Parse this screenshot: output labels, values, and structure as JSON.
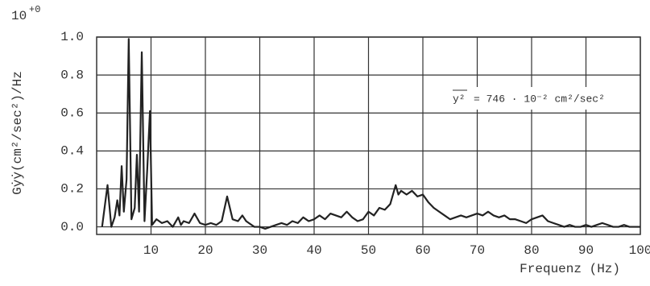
{
  "chart_data": {
    "type": "line",
    "y_scale": "10",
    "y_scale_exponent": "+0",
    "y_label": "Gẏẏ(cm²/sec²)/Hz",
    "x_label": "Frequenz (Hz)",
    "annotation_symbol": "y²",
    "annotation": "= 746 · 10⁻² cm²/sec²",
    "color": "#222222",
    "grid": true,
    "xlim": [
      0,
      100
    ],
    "xticks": [
      10,
      20,
      30,
      40,
      50,
      60,
      70,
      80,
      90,
      100
    ],
    "ylim": [
      -0.04,
      1.0
    ],
    "yticks": [
      {
        "value": 0,
        "label": "0.0"
      },
      {
        "value": 0.2,
        "label": "0.2"
      },
      {
        "value": 0.4,
        "label": "0.4"
      },
      {
        "value": 0.6,
        "label": "0.6"
      },
      {
        "value": 0.8,
        "label": "0.8"
      },
      {
        "value": 1.0,
        "label": "1.0"
      }
    ],
    "x": [
      1,
      2,
      2.7,
      3.3,
      3.8,
      4.2,
      4.6,
      5.0,
      5.5,
      5.9,
      6.4,
      7.0,
      7.4,
      7.8,
      8.3,
      8.8,
      9.3,
      9.8,
      10.2,
      11,
      12,
      13,
      14,
      15,
      15.5,
      16,
      17,
      18,
      19,
      20,
      21,
      22,
      23,
      24,
      24.5,
      25,
      26,
      26.8,
      27.5,
      28,
      29,
      30,
      31,
      32,
      33,
      34,
      35,
      36,
      37,
      38,
      39,
      40,
      41,
      42,
      43,
      44,
      45,
      46,
      47,
      48,
      49,
      50,
      51,
      52,
      53,
      54,
      55,
      55.5,
      56,
      57,
      58,
      59,
      60,
      61,
      62,
      63,
      64,
      65,
      66,
      67,
      68,
      69,
      70,
      71,
      72,
      73,
      74,
      75,
      76,
      77,
      78,
      79,
      80,
      81,
      82,
      83,
      84,
      85,
      86,
      87,
      88,
      89,
      90,
      91,
      92,
      93,
      94,
      95,
      96,
      97,
      98,
      99,
      100
    ],
    "values": [
      0.0,
      0.22,
      0.0,
      0.05,
      0.14,
      0.06,
      0.32,
      0.08,
      0.25,
      0.99,
      0.04,
      0.1,
      0.38,
      0.08,
      0.92,
      0.03,
      0.3,
      0.61,
      0.01,
      0.04,
      0.02,
      0.03,
      0.0,
      0.05,
      0.01,
      0.03,
      0.02,
      0.07,
      0.02,
      0.01,
      0.02,
      0.01,
      0.03,
      0.16,
      0.1,
      0.04,
      0.03,
      0.06,
      0.03,
      0.02,
      0.0,
      0.0,
      -0.01,
      0.0,
      0.01,
      0.02,
      0.01,
      0.03,
      0.02,
      0.05,
      0.03,
      0.04,
      0.06,
      0.04,
      0.07,
      0.06,
      0.05,
      0.08,
      0.05,
      0.03,
      0.04,
      0.08,
      0.06,
      0.1,
      0.09,
      0.12,
      0.22,
      0.17,
      0.19,
      0.17,
      0.19,
      0.16,
      0.17,
      0.13,
      0.1,
      0.08,
      0.06,
      0.04,
      0.05,
      0.06,
      0.05,
      0.06,
      0.07,
      0.06,
      0.08,
      0.06,
      0.05,
      0.06,
      0.04,
      0.04,
      0.03,
      0.02,
      0.04,
      0.05,
      0.06,
      0.03,
      0.02,
      0.01,
      0.0,
      0.01,
      0.0,
      0.0,
      0.01,
      0.0,
      0.01,
      0.02,
      0.01,
      0.0,
      0.0,
      0.01,
      0.0,
      0.0,
      0.0
    ]
  }
}
